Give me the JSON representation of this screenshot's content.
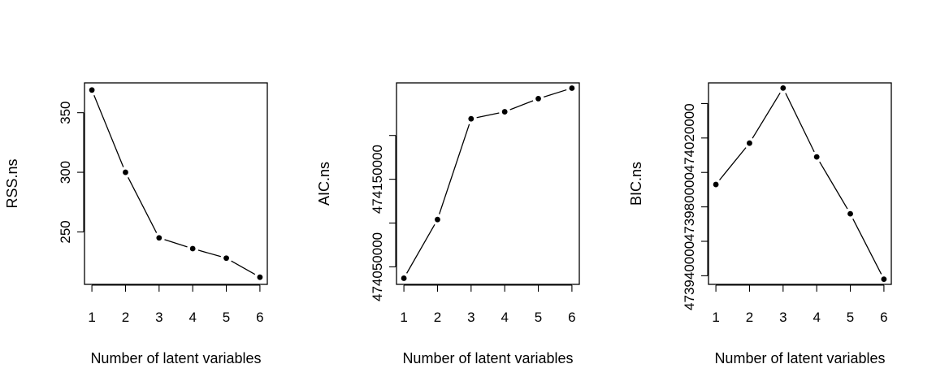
{
  "chart_data": [
    {
      "type": "line",
      "title": "",
      "xlabel": "Number of latent variables",
      "ylabel": "RSS.ns",
      "x": [
        1,
        2,
        3,
        4,
        5,
        6
      ],
      "series": [
        {
          "values": [
            369,
            300,
            245,
            236,
            228,
            212
          ]
        }
      ],
      "x_ticks": [
        1,
        2,
        3,
        4,
        5,
        6
      ],
      "y_ticks": [
        250,
        300,
        350
      ],
      "y_tick_labels": [
        "250",
        "300",
        "350"
      ],
      "xlim": [
        0.78,
        6.22
      ],
      "ylim": [
        206,
        375
      ],
      "grid": false,
      "legend": "none"
    },
    {
      "type": "line",
      "title": "",
      "xlabel": "Number of latent variables",
      "ylabel": "AIC.ns",
      "x": [
        1,
        2,
        3,
        4,
        5,
        6
      ],
      "series": [
        {
          "values": [
            474037000,
            474104000,
            474219000,
            474227000,
            474242000,
            474254000
          ]
        }
      ],
      "x_ticks": [
        1,
        2,
        3,
        4,
        5,
        6
      ],
      "y_ticks": [
        474050000,
        474100000,
        474150000,
        474200000
      ],
      "y_tick_labels": [
        "474050000",
        "",
        "474150000",
        ""
      ],
      "xlim": [
        0.78,
        6.22
      ],
      "ylim": [
        474030000,
        474260000
      ],
      "grid": false,
      "legend": "none"
    },
    {
      "type": "line",
      "title": "",
      "xlabel": "Number of latent variables",
      "ylabel": "BIC.ns",
      "x": [
        1,
        2,
        3,
        4,
        5,
        6
      ],
      "series": [
        {
          "values": [
            473993000,
            474017000,
            474049000,
            474009000,
            473976000,
            473938000
          ]
        }
      ],
      "x_ticks": [
        1,
        2,
        3,
        4,
        5,
        6
      ],
      "y_ticks": [
        473940000,
        473960000,
        473980000,
        474000000,
        474020000,
        474040000
      ],
      "y_tick_labels": [
        "473940000",
        "",
        "473980000",
        "",
        "474020000",
        ""
      ],
      "xlim": [
        0.78,
        6.22
      ],
      "ylim": [
        473935000,
        474052000
      ],
      "grid": false,
      "legend": "none"
    }
  ]
}
